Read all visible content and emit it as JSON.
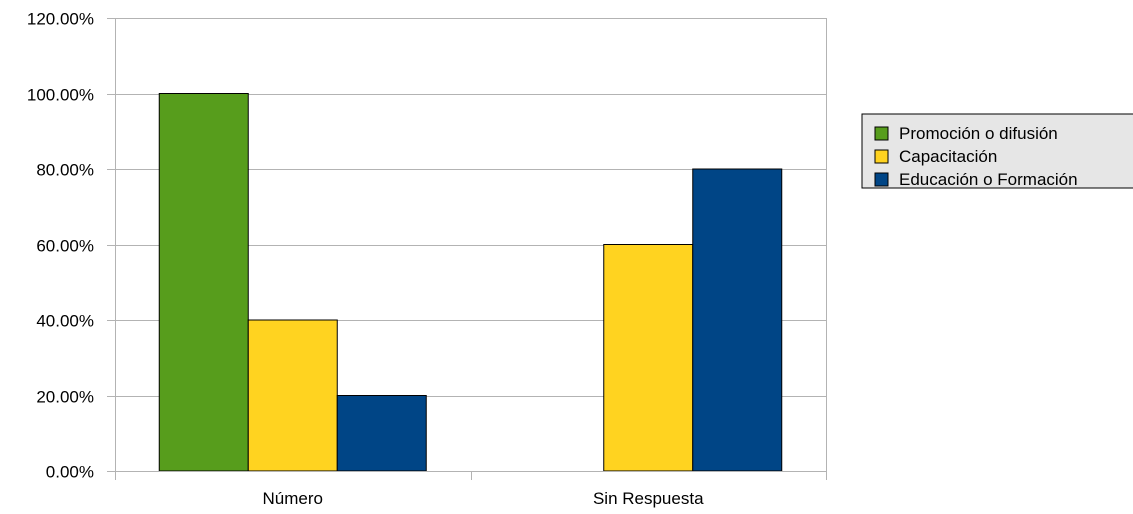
{
  "chart_data": {
    "type": "bar",
    "categories": [
      "Número",
      "Sin Respuesta"
    ],
    "series": [
      {
        "name": "Promoción o difusión",
        "values": [
          100,
          0
        ],
        "color": "#579d1c"
      },
      {
        "name": "Capacitación",
        "values": [
          40,
          60
        ],
        "color": "#ffd320"
      },
      {
        "name": "Educación o Formación",
        "values": [
          20,
          80
        ],
        "color": "#004586"
      }
    ],
    "y_ticks": [
      "0.00%",
      "20.00%",
      "40.00%",
      "60.00%",
      "80.00%",
      "100.00%",
      "120.00%"
    ],
    "ylim": [
      0,
      120
    ],
    "grid": true,
    "legend_position": "right",
    "legend_background": "#e6e6e6"
  }
}
